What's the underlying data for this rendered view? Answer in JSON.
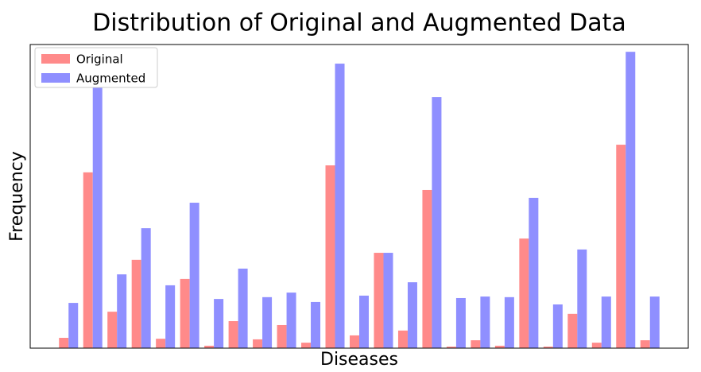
{
  "chart_data": {
    "type": "bar",
    "title": "Distribution of Original and Augmented Data",
    "x_label": "Diseases",
    "y_label": "Frequency",
    "categories": [
      null,
      null,
      null,
      null,
      null,
      null,
      null,
      null,
      null,
      null,
      null,
      null,
      null,
      null,
      null,
      null,
      null,
      null,
      null,
      null,
      null,
      null,
      null,
      null,
      null
    ],
    "series": [
      {
        "name": "Original",
        "color": "#ff8a8a",
        "values": [
          3.4,
          57.9,
          12,
          29.1,
          3.1,
          22.8,
          0.8,
          8.9,
          2.9,
          7.6,
          1.8,
          60.2,
          4.2,
          31.4,
          5.8,
          52.1,
          0.5,
          2.6,
          0.8,
          36.1,
          0.5,
          11.3,
          1.8,
          67,
          2.6
        ]
      },
      {
        "name": "Augmented",
        "color": "#8f8fff",
        "values": [
          14.9,
          87.4,
          24.3,
          39.5,
          20.7,
          47.9,
          16.2,
          26.2,
          16.8,
          18.3,
          15.2,
          93.7,
          17.3,
          31.4,
          21.7,
          82.7,
          16.5,
          17,
          16.8,
          49.5,
          14.4,
          32.5,
          17,
          97.6,
          17
        ]
      }
    ],
    "ylim": [
      0,
      100
    ],
    "legend": "upper left"
  }
}
